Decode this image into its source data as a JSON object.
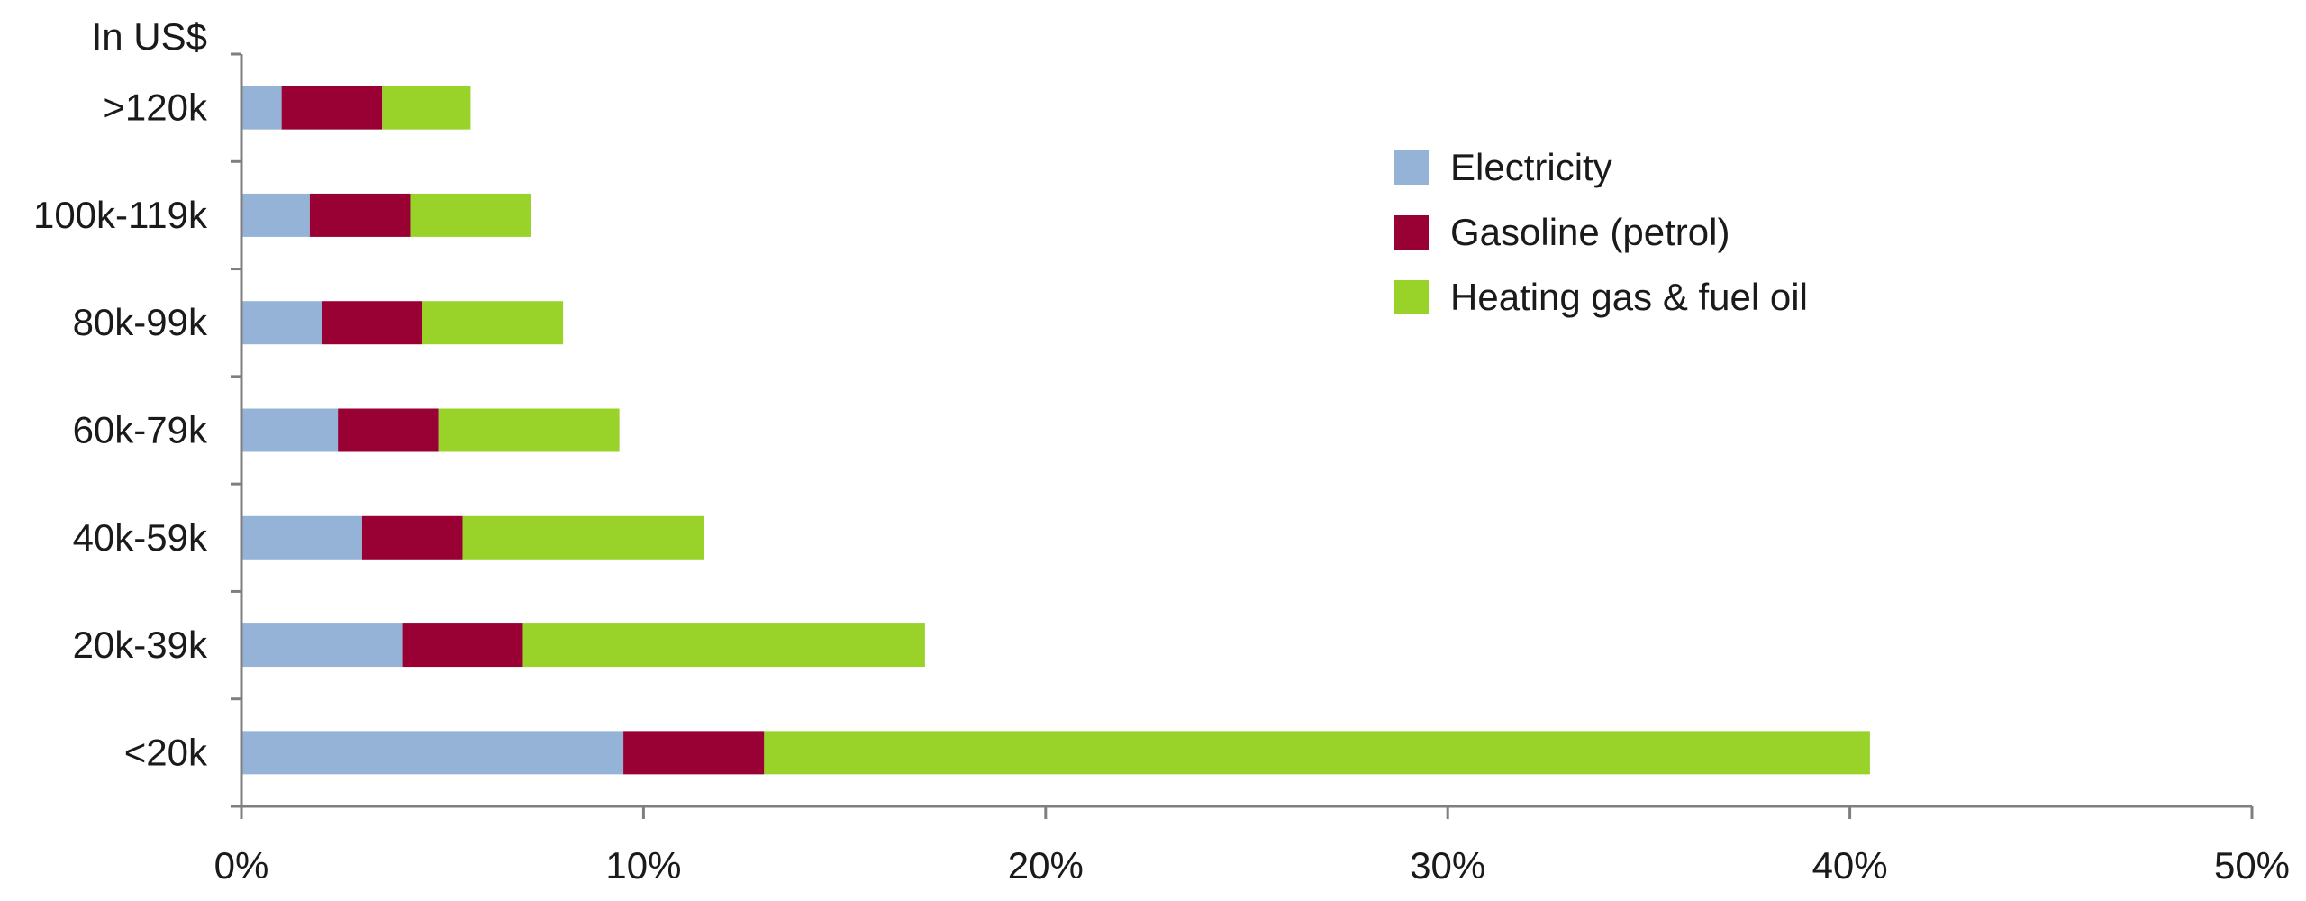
{
  "chart_data": {
    "type": "bar",
    "orientation": "horizontal",
    "stacked": true,
    "unit_label": "In US$",
    "categories": [
      ">120k",
      "100k-119k",
      "80k-99k",
      "60k-79k",
      "40k-59k",
      "20k-39k",
      "<20k"
    ],
    "series": [
      {
        "name": "Electricity",
        "color": "#95b3d7",
        "values": [
          1.0,
          1.7,
          2.0,
          2.4,
          3.0,
          4.0,
          9.5
        ]
      },
      {
        "name": "Gasoline (petrol)",
        "color": "#990033",
        "values": [
          2.5,
          2.5,
          2.5,
          2.5,
          2.5,
          3.0,
          3.5
        ]
      },
      {
        "name": "Heating gas & fuel oil",
        "color": "#99d32a",
        "values": [
          2.2,
          3.0,
          3.5,
          4.5,
          6.0,
          10.0,
          27.5
        ]
      }
    ],
    "xlim": [
      0,
      50
    ],
    "xticks": [
      "0%",
      "10%",
      "20%",
      "30%",
      "40%",
      "50%"
    ],
    "xtick_values": [
      0,
      10,
      20,
      30,
      40,
      50
    ],
    "grid": false,
    "legend_position": "upper-right"
  }
}
